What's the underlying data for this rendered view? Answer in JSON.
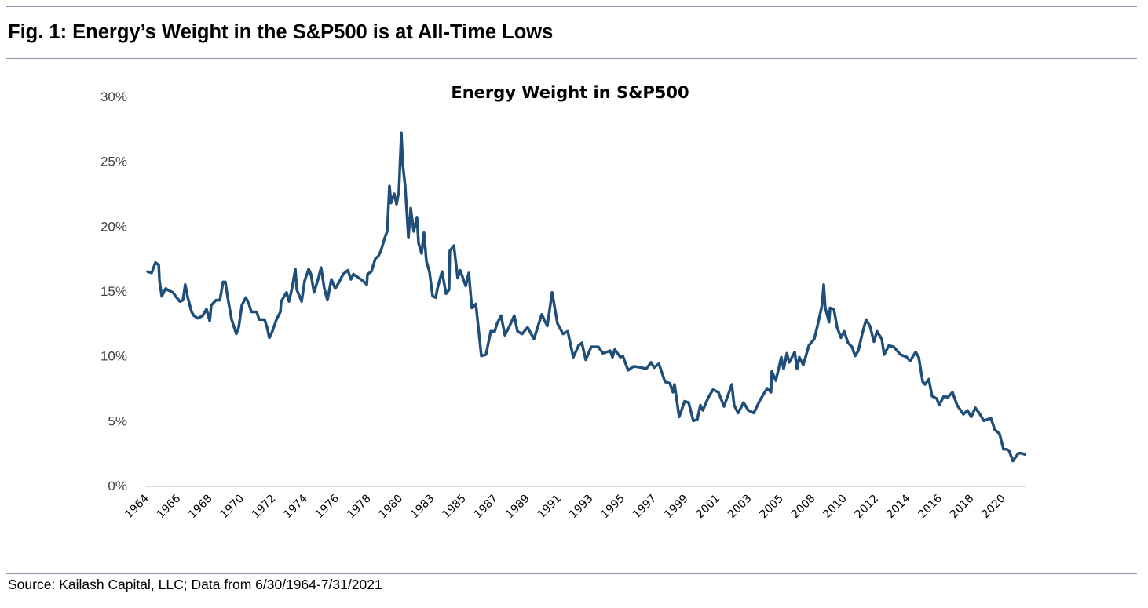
{
  "figure": {
    "title": "Fig. 1:  Energy’s Weight in the S&P500 is at All-Time Lows",
    "source": "Source: Kailash Capital, LLC; Data from 6/30/1964-7/31/2021"
  },
  "chart_data": {
    "type": "line",
    "title": "Energy Weight in S&P500",
    "xlabel": "",
    "ylabel": "",
    "ylim": [
      0,
      30
    ],
    "xlim": [
      1964.5,
      2021.58
    ],
    "y_ticks": [
      "0%",
      "5%",
      "10%",
      "15%",
      "20%",
      "25%",
      "30%"
    ],
    "y_tick_values": [
      0,
      5,
      10,
      15,
      20,
      25,
      30
    ],
    "x_tick_labels": [
      "1964",
      "1966",
      "1968",
      "1970",
      "1972",
      "1974",
      "1976",
      "1978",
      "1980",
      "1983",
      "1985",
      "1987",
      "1989",
      "1991",
      "1993",
      "1995",
      "1997",
      "1999",
      "2001",
      "2003",
      "2005",
      "2008",
      "2010",
      "2012",
      "2014",
      "2016",
      "2018",
      "2020"
    ],
    "grid": "baseline only",
    "legend": "none",
    "line_color": "#1f4e79",
    "series": [
      {
        "x": [
          1964.5,
          1964.76,
          1965.01,
          1965.22,
          1965.27,
          1965.42,
          1965.68,
          1965.78,
          1966.14,
          1966.39,
          1966.6,
          1966.8,
          1966.95,
          1967.11,
          1967.36,
          1967.51,
          1967.77,
          1968.08,
          1968.33,
          1968.54,
          1968.64,
          1968.95,
          1969.2,
          1969.41,
          1969.56,
          1969.71,
          1969.97,
          1970.27,
          1970.43,
          1970.63,
          1970.89,
          1971.09,
          1971.25,
          1971.6,
          1971.76,
          1972.11,
          1972.27,
          1972.42,
          1972.62,
          1972.88,
          1973.14,
          1973.19,
          1973.39,
          1973.54,
          1973.7,
          1973.9,
          1974.11,
          1974.21,
          1974.52,
          1974.72,
          1974.98,
          1975.13,
          1975.33,
          1975.59,
          1975.79,
          1976.0,
          1976.2,
          1976.46,
          1976.71,
          1976.97,
          1977.22,
          1977.53,
          1977.73,
          1977.89,
          1978.14,
          1978.5,
          1978.76,
          1978.81,
          1979.06,
          1979.32,
          1979.52,
          1979.68,
          1979.93,
          1980.09,
          1980.24,
          1980.34,
          1980.55,
          1980.7,
          1980.85,
          1981.01,
          1981.11,
          1981.26,
          1981.47,
          1981.62,
          1981.82,
          1982.03,
          1982.13,
          1982.33,
          1982.49,
          1982.64,
          1982.84,
          1983.05,
          1983.25,
          1983.36,
          1983.66,
          1983.92,
          1984.12,
          1984.17,
          1984.43,
          1984.68,
          1984.84,
          1984.99,
          1985.2,
          1985.4,
          1985.6,
          1985.86,
          1986.22,
          1986.52,
          1986.83,
          1987.09,
          1987.24,
          1987.5,
          1987.75,
          1988.01,
          1988.36,
          1988.57,
          1988.87,
          1989.23,
          1989.64,
          1990.15,
          1990.51,
          1990.82,
          1991.17,
          1991.53,
          1991.84,
          1992.2,
          1992.55,
          1992.76,
          1993.01,
          1993.37,
          1993.83,
          1994.14,
          1994.6,
          1994.75,
          1994.9,
          1995.26,
          1995.42,
          1995.77,
          1996.13,
          1996.64,
          1996.95,
          1997.26,
          1997.46,
          1997.77,
          1998.17,
          1998.48,
          1998.69,
          1998.79,
          1999.09,
          1999.45,
          1999.71,
          2000.01,
          2000.27,
          2000.47,
          2000.63,
          2000.99,
          2001.29,
          2001.65,
          2002.01,
          2002.52,
          2002.67,
          2002.93,
          2003.28,
          2003.59,
          2003.95,
          2004.36,
          2004.56,
          2004.82,
          2005.07,
          2005.12,
          2005.38,
          2005.74,
          2005.89,
          2006.1,
          2006.25,
          2006.61,
          2006.76,
          2006.91,
          2007.17,
          2007.53,
          2007.88,
          2008.09,
          2008.24,
          2008.39,
          2008.5,
          2008.6,
          2008.85,
          2008.91,
          2009.16,
          2009.37,
          2009.62,
          2009.83,
          2010.08,
          2010.34,
          2010.54,
          2010.75,
          2011.0,
          2011.26,
          2011.51,
          2011.77,
          2011.97,
          2012.28,
          2012.43,
          2012.74,
          2013.05,
          2013.5,
          2013.91,
          2014.12,
          2014.48,
          2014.68,
          2014.94,
          2015.09,
          2015.34,
          2015.55,
          2015.86,
          2016.01,
          2016.32,
          2016.57,
          2016.88,
          2017.18,
          2017.59,
          2017.85,
          2018.1,
          2018.36,
          2018.61,
          2018.92,
          2019.38,
          2019.64,
          2019.94,
          2020.2,
          2020.4,
          2020.56,
          2020.81,
          2021.17,
          2021.37,
          2021.58
        ],
        "y": [
          16.5,
          16.4,
          17.2,
          17.0,
          15.8,
          14.6,
          15.2,
          15.1,
          14.9,
          14.5,
          14.2,
          14.3,
          15.5,
          14.5,
          13.4,
          13.1,
          12.9,
          13.1,
          13.6,
          12.7,
          13.9,
          14.3,
          14.3,
          15.7,
          15.7,
          14.5,
          12.8,
          11.7,
          12.2,
          13.9,
          14.5,
          14.0,
          13.4,
          13.4,
          12.8,
          12.8,
          12.2,
          11.4,
          11.9,
          12.8,
          13.4,
          14.2,
          14.6,
          14.9,
          14.2,
          15.2,
          16.7,
          15.1,
          14.2,
          15.8,
          16.7,
          16.3,
          14.9,
          15.9,
          16.8,
          15.2,
          14.3,
          15.9,
          15.2,
          15.7,
          16.3,
          16.6,
          15.9,
          16.3,
          16.1,
          15.8,
          15.5,
          16.3,
          16.5,
          17.5,
          17.7,
          18.1,
          19.1,
          19.6,
          23.1,
          21.8,
          22.5,
          21.7,
          22.7,
          27.2,
          24.7,
          23.1,
          19.1,
          21.4,
          19.6,
          20.7,
          18.7,
          17.9,
          19.5,
          17.3,
          16.5,
          14.6,
          14.5,
          15.2,
          16.5,
          14.8,
          15.1,
          18.1,
          18.5,
          16.0,
          16.6,
          16.1,
          15.4,
          16.4,
          13.7,
          14.0,
          10.0,
          10.1,
          11.9,
          11.9,
          12.5,
          13.1,
          11.6,
          12.2,
          13.1,
          11.9,
          11.7,
          12.2,
          11.3,
          13.2,
          12.3,
          14.9,
          12.5,
          11.7,
          11.9,
          9.9,
          10.8,
          11.0,
          9.7,
          10.7,
          10.7,
          10.2,
          10.4,
          9.9,
          10.5,
          9.9,
          10.0,
          8.9,
          9.2,
          9.1,
          9.0,
          9.5,
          9.1,
          9.4,
          8.0,
          7.9,
          7.2,
          7.8,
          5.3,
          6.5,
          6.4,
          5.0,
          5.1,
          6.2,
          5.8,
          6.8,
          7.4,
          7.2,
          6.1,
          7.8,
          6.2,
          5.6,
          6.4,
          5.8,
          5.6,
          6.6,
          7.0,
          7.5,
          7.2,
          8.8,
          8.1,
          9.9,
          9.0,
          10.2,
          9.5,
          10.3,
          9.0,
          9.9,
          9.3,
          10.8,
          11.3,
          12.3,
          13.1,
          13.9,
          15.5,
          13.7,
          12.6,
          13.7,
          13.6,
          12.2,
          11.4,
          11.9,
          11.0,
          10.7,
          10.0,
          10.4,
          11.7,
          12.8,
          12.3,
          11.1,
          11.9,
          11.3,
          10.1,
          10.8,
          10.7,
          10.1,
          9.9,
          9.6,
          10.3,
          9.9,
          8.0,
          7.8,
          8.2,
          6.9,
          6.7,
          6.2,
          6.9,
          6.8,
          7.2,
          6.2,
          5.5,
          5.8,
          5.3,
          6.0,
          5.6,
          5.0,
          5.2,
          4.3,
          4.0,
          2.8,
          2.8,
          2.7,
          1.9,
          2.5,
          2.5,
          2.4
        ]
      }
    ]
  }
}
